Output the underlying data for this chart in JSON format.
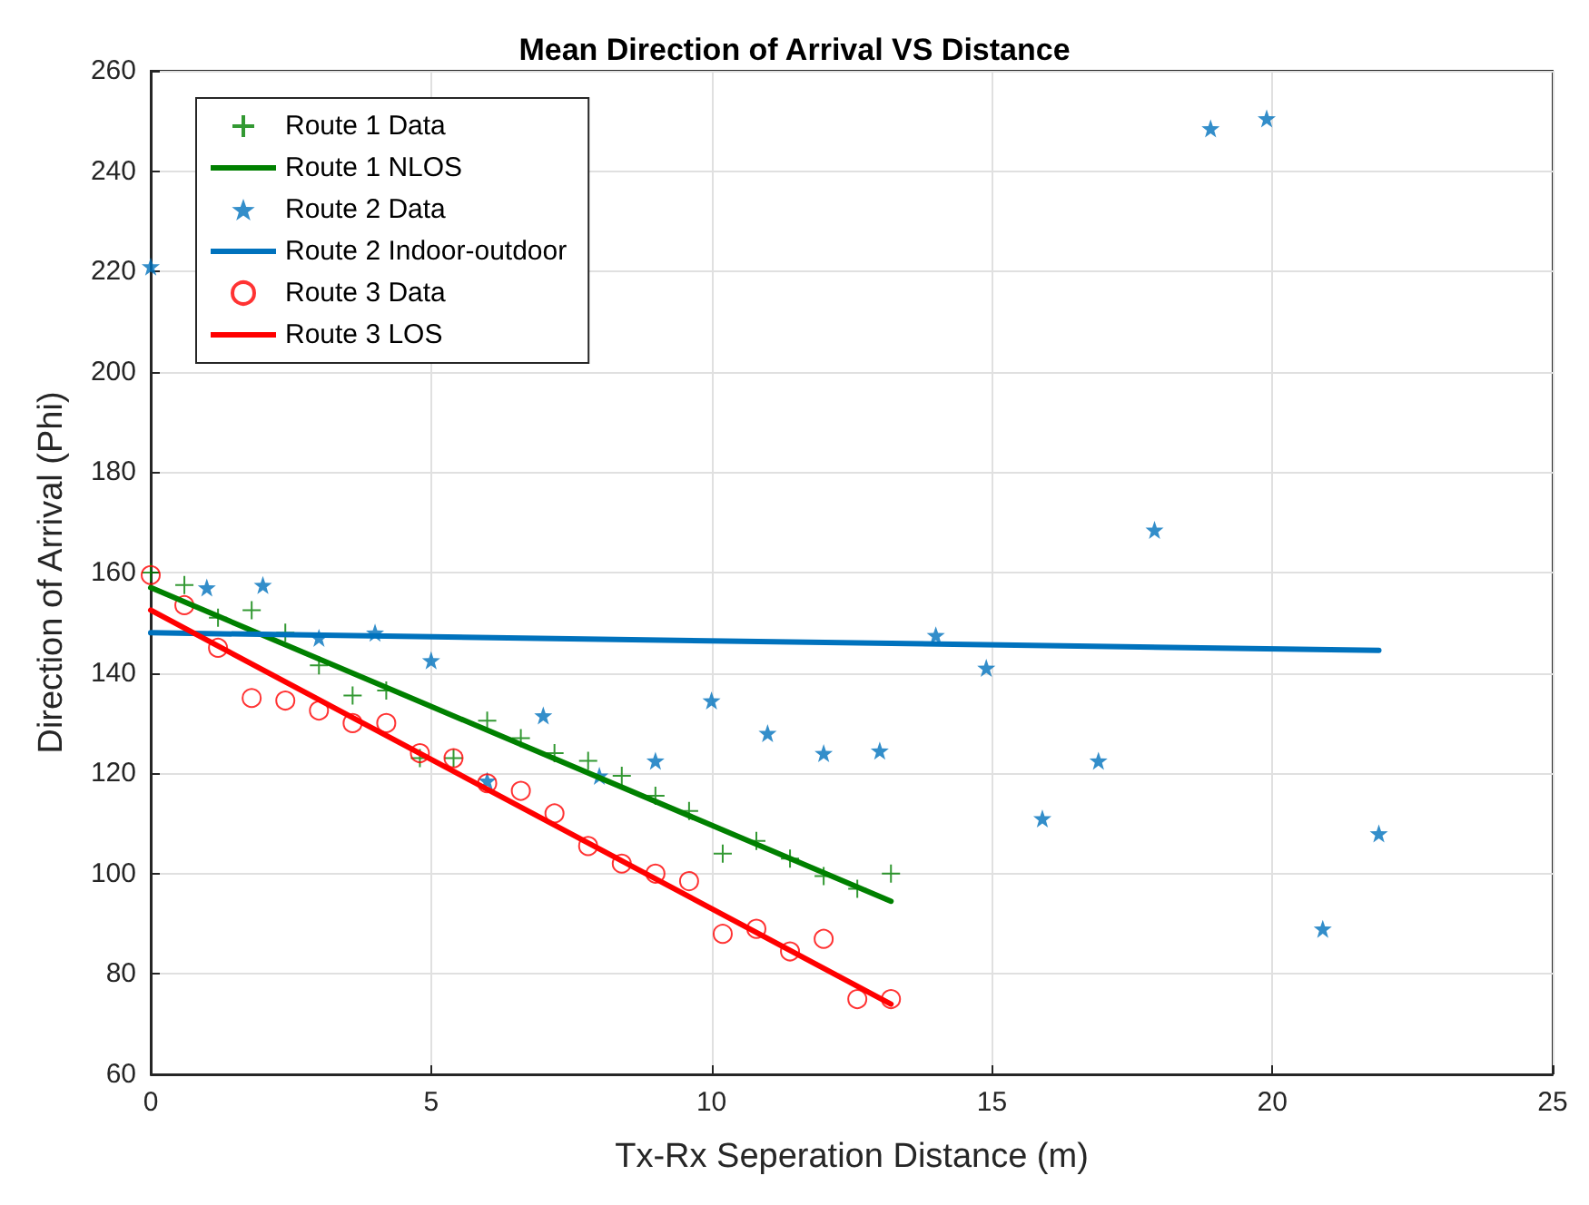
{
  "chart_data": {
    "type": "scatter",
    "title": "Mean Direction of Arrival VS Distance",
    "xlabel": "Tx-Rx Seperation Distance (m)",
    "ylabel": "Direction of Arrival (Phi)",
    "xlim": [
      0,
      25
    ],
    "xticks": [
      0,
      5,
      10,
      15,
      20,
      25
    ],
    "ylim": [
      60,
      260
    ],
    "yticks": [
      60,
      80,
      100,
      120,
      140,
      160,
      180,
      200,
      220,
      240,
      260
    ],
    "grid": true,
    "legend": "top left",
    "series": [
      {
        "name": "Route 1 Data",
        "marker": "cross",
        "color": "#008000",
        "x": [
          0,
          0.6,
          1.2,
          1.8,
          2.4,
          3.0,
          3.6,
          4.2,
          4.8,
          5.4,
          6.0,
          6.6,
          7.2,
          7.8,
          8.4,
          9.0,
          9.6,
          10.2,
          10.8,
          11.4,
          12.0,
          12.6,
          13.2
        ],
        "values": [
          160,
          157.5,
          151,
          152.5,
          148,
          141.5,
          135.5,
          136.5,
          123,
          123,
          130.5,
          127,
          124,
          122.5,
          119.5,
          115.5,
          112.5,
          104,
          106.5,
          103,
          99.5,
          97,
          100
        ]
      },
      {
        "name": "Route 1 NLOS",
        "type": "line",
        "marker": "none",
        "line_style": "solid",
        "color": "#008000",
        "x": [
          0,
          13.2
        ],
        "values": [
          157,
          94.5
        ]
      },
      {
        "name": "Route 2 Data",
        "marker": "star",
        "color": "#0072bd",
        "x": [
          0,
          1,
          2,
          3,
          4,
          5,
          6,
          7,
          8,
          9,
          10,
          11,
          12,
          13,
          14,
          14.9,
          15.9,
          16.9,
          17.9,
          18.9,
          19.9,
          20.9,
          21.9
        ],
        "values": [
          221,
          157,
          157.5,
          147,
          148,
          142.5,
          118.5,
          131.5,
          119.5,
          122.5,
          134.5,
          128,
          124,
          124.5,
          147.5,
          141,
          111,
          122.5,
          168.5,
          248.5,
          250.5,
          89,
          108
        ]
      },
      {
        "name": "Route 2 Indoor-outdoor",
        "type": "line",
        "marker": "none",
        "line_style": "solid",
        "color": "#0072bd",
        "x": [
          0,
          21.9
        ],
        "values": [
          148,
          144.5
        ]
      },
      {
        "name": "Route 3 Data",
        "marker": "circle",
        "color": "#ff0000",
        "x": [
          0,
          0.6,
          1.2,
          1.8,
          2.4,
          3.0,
          3.6,
          4.2,
          4.8,
          5.4,
          6.0,
          6.6,
          7.2,
          7.8,
          8.4,
          9.0,
          9.6,
          10.2,
          10.8,
          11.4,
          12.0,
          12.6,
          13.2
        ],
        "values": [
          159.5,
          153.5,
          145,
          135,
          134.5,
          132.5,
          130,
          130,
          124,
          123,
          118,
          116.5,
          112,
          105.5,
          102,
          100,
          98.5,
          88,
          89,
          84.5,
          87,
          75,
          75
        ]
      },
      {
        "name": "Route 3 LOS",
        "type": "line",
        "marker": "none",
        "line_style": "solid",
        "color": "#ff0000",
        "x": [
          0,
          13.2
        ],
        "values": [
          152.5,
          74
        ]
      }
    ]
  }
}
